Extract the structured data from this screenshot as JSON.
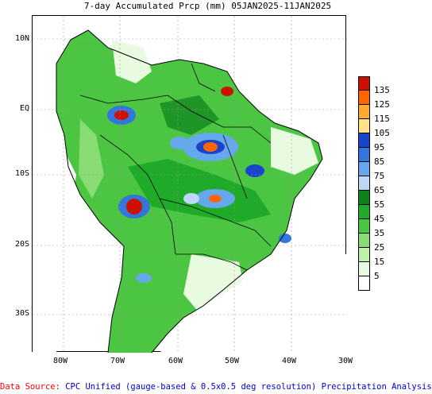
{
  "title": "7-day Accumulated Prcp (mm) 05JAN2025-11JAN2025",
  "lat_labels": [
    "10N",
    "EQ",
    "10S",
    "20S",
    "30S"
  ],
  "lon_labels": [
    "80W",
    "70W",
    "60W",
    "50W",
    "40W",
    "30W"
  ],
  "legend": {
    "labels": [
      "135",
      "125",
      "115",
      "105",
      "95",
      "85",
      "75",
      "65",
      "55",
      "45",
      "35",
      "25",
      "15",
      "5"
    ],
    "colors": [
      "#cc1100",
      "#ff6600",
      "#ffaa33",
      "#ffe28a",
      "#1a44cc",
      "#3377dd",
      "#66a8ee",
      "#bcd8f6",
      "#0d7f1c",
      "#1faa2a",
      "#4cc642",
      "#88dc73",
      "#bdf0a8",
      "#e8fbe0",
      "#ffffff"
    ]
  },
  "footer": {
    "source_label": "Data Source:",
    "description": "CPC Unified (gauge-based & 0.5x0.5 deg resolution) Precipitation Analysis"
  }
}
